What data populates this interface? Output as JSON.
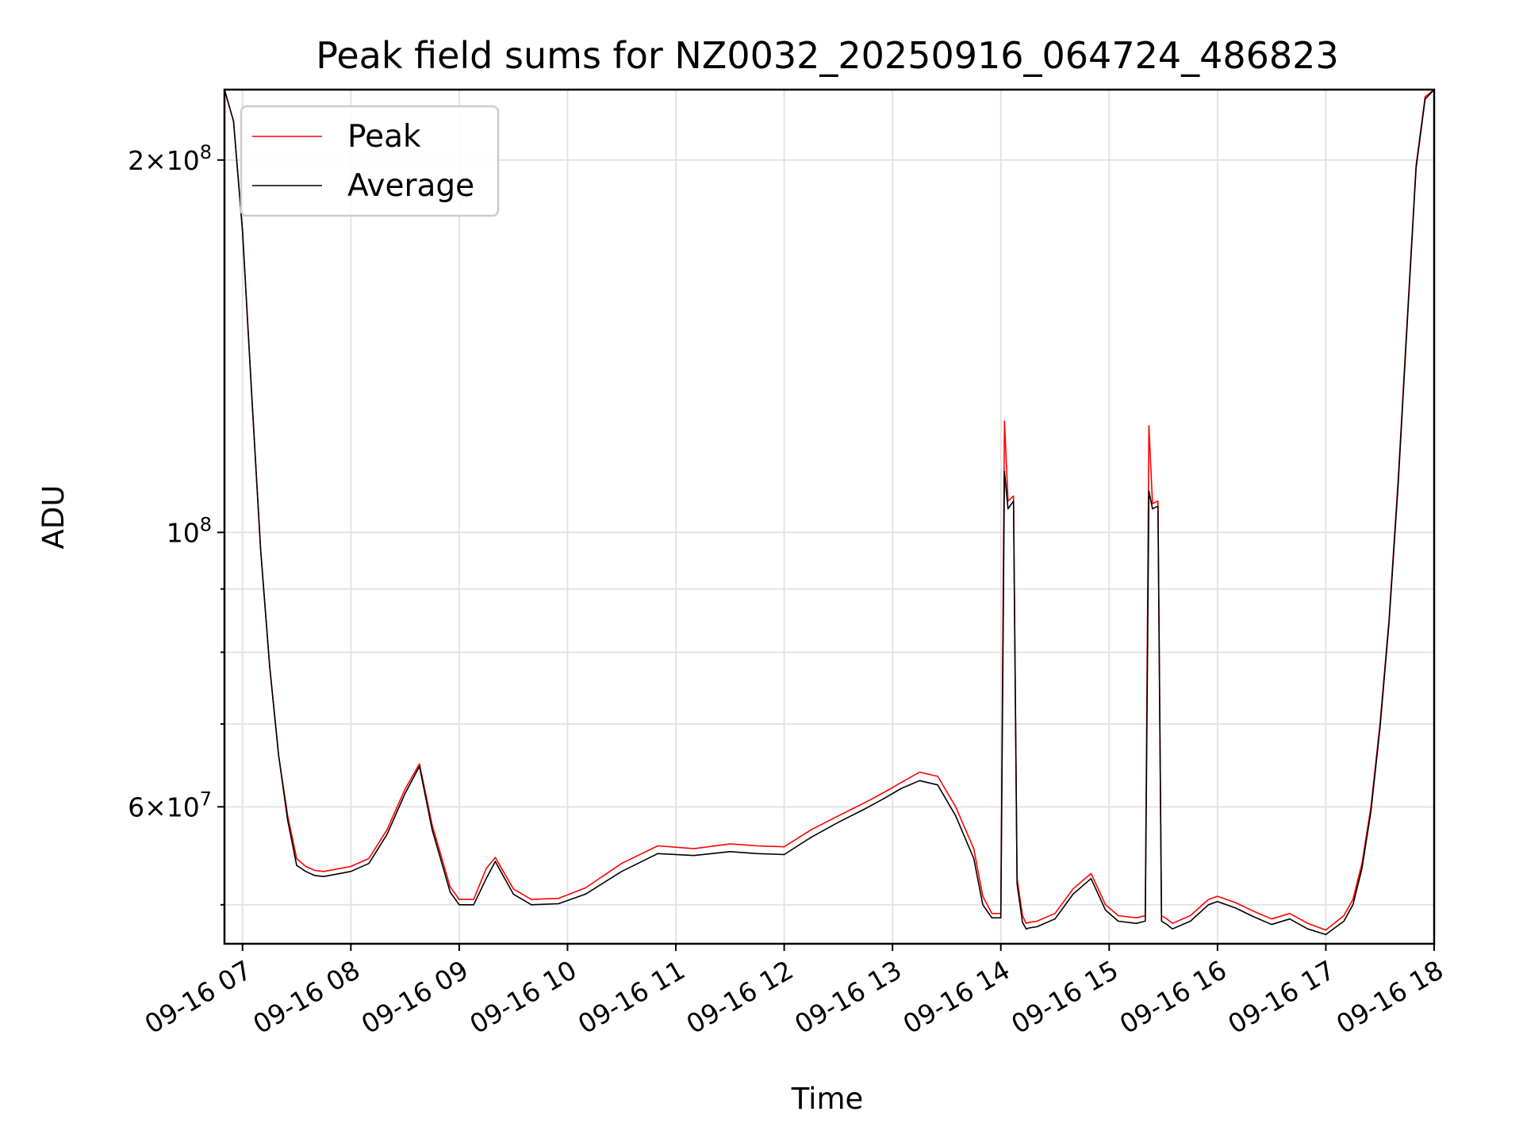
{
  "chart_data": {
    "type": "line",
    "title": "Peak field sums for NZ0032_20250916_064724_486823",
    "xlabel": "Time",
    "ylabel": "ADU",
    "yscale": "log",
    "grid": true,
    "legend_position": "top-left",
    "xlim": [
      "2025-09-16 06:50",
      "2025-09-16 18:00"
    ],
    "ylim": [
      46500000,
      228000000
    ],
    "x_ticks": [
      "09-16 07",
      "09-16 08",
      "09-16 09",
      "09-16 10",
      "09-16 11",
      "09-16 12",
      "09-16 13",
      "09-16 14",
      "09-16 15",
      "09-16 16",
      "09-16 17",
      "09-16 18"
    ],
    "y_major_ticks": [
      {
        "value": 200000000,
        "mantissa": "2",
        "exponent": "8"
      },
      {
        "value": 100000000,
        "mantissa": "",
        "exponent": "8"
      },
      {
        "value": 60000000,
        "mantissa": "6",
        "exponent": "7"
      }
    ],
    "y_minor_ticks": [
      50000000,
      70000000,
      80000000,
      90000000
    ],
    "legend": [
      {
        "label": "Peak",
        "color": "#ff0000"
      },
      {
        "label": "Average",
        "color": "#000000"
      }
    ],
    "x": [
      "06:50",
      "06:55",
      "07:00",
      "07:05",
      "07:10",
      "07:15",
      "07:20",
      "07:25",
      "07:30",
      "07:35",
      "07:40",
      "07:45",
      "08:00",
      "08:10",
      "08:20",
      "08:30",
      "08:38",
      "08:45",
      "08:55",
      "09:00",
      "09:08",
      "09:15",
      "09:20",
      "09:30",
      "09:40",
      "09:55",
      "10:10",
      "10:30",
      "10:50",
      "11:10",
      "11:30",
      "11:45",
      "12:00",
      "12:15",
      "12:30",
      "12:45",
      "12:55",
      "13:05",
      "13:15",
      "13:25",
      "13:35",
      "13:45",
      "13:50",
      "13:55",
      "14:00",
      "14:02",
      "14:04",
      "14:07",
      "14:09",
      "14:12",
      "14:14",
      "14:16",
      "14:20",
      "14:30",
      "14:40",
      "14:50",
      "14:58",
      "15:05",
      "15:15",
      "15:20",
      "15:22",
      "15:24",
      "15:27",
      "15:29",
      "15:32",
      "15:35",
      "15:45",
      "15:55",
      "16:00",
      "16:10",
      "16:20",
      "16:30",
      "16:40",
      "16:50",
      "17:00",
      "17:10",
      "17:15",
      "17:20",
      "17:25",
      "17:30",
      "17:35",
      "17:40",
      "17:45",
      "17:50",
      "17:55",
      "18:00"
    ],
    "series": [
      {
        "name": "Peak",
        "color": "#ff0000",
        "values": [
          228000000,
          215000000,
          175000000,
          130000000,
          97000000,
          78000000,
          66000000,
          59000000,
          54500000,
          53700000,
          53300000,
          53200000,
          53700000,
          54500000,
          57500000,
          62000000,
          65000000,
          58000000,
          51700000,
          50500000,
          50500000,
          53500000,
          54600000,
          51500000,
          50500000,
          50600000,
          51600000,
          54000000,
          55800000,
          55500000,
          56000000,
          55800000,
          55700000,
          57500000,
          59000000,
          60500000,
          61600000,
          62800000,
          64000000,
          63500000,
          60000000,
          55500000,
          50800000,
          49200000,
          49200000,
          123000000,
          106000000,
          107000000,
          52500000,
          49000000,
          48300000,
          48400000,
          48500000,
          49200000,
          51500000,
          53000000,
          50000000,
          49000000,
          48800000,
          49000000,
          122000000,
          105500000,
          106000000,
          49000000,
          48700000,
          48300000,
          49000000,
          50500000,
          50800000,
          50200000,
          49400000,
          48700000,
          49200000,
          48300000,
          47700000,
          49000000,
          50500000,
          54000000,
          60000000,
          70000000,
          85000000,
          110000000,
          148000000,
          198000000,
          225000000,
          228000000
        ]
      },
      {
        "name": "Average",
        "color": "#000000",
        "values": [
          228000000,
          215000000,
          175000000,
          130000000,
          97000000,
          78000000,
          66000000,
          58500000,
          53800000,
          53200000,
          52800000,
          52700000,
          53200000,
          54000000,
          57000000,
          61500000,
          64700000,
          57500000,
          51200000,
          50000000,
          50000000,
          52500000,
          54200000,
          51000000,
          50000000,
          50100000,
          51000000,
          53200000,
          55000000,
          54800000,
          55200000,
          55000000,
          54900000,
          56700000,
          58300000,
          59800000,
          60900000,
          62100000,
          63000000,
          62500000,
          59000000,
          54500000,
          50000000,
          48800000,
          48800000,
          112000000,
          104500000,
          106000000,
          52000000,
          48400000,
          47800000,
          47900000,
          48000000,
          48700000,
          51000000,
          52500000,
          49500000,
          48500000,
          48300000,
          48500000,
          108000000,
          104500000,
          105000000,
          48500000,
          48200000,
          47800000,
          48500000,
          50000000,
          50300000,
          49700000,
          48900000,
          48200000,
          48700000,
          47800000,
          47300000,
          48500000,
          50000000,
          53500000,
          59500000,
          69500000,
          84500000,
          109000000,
          147000000,
          197000000,
          224000000,
          228000000
        ]
      }
    ]
  }
}
